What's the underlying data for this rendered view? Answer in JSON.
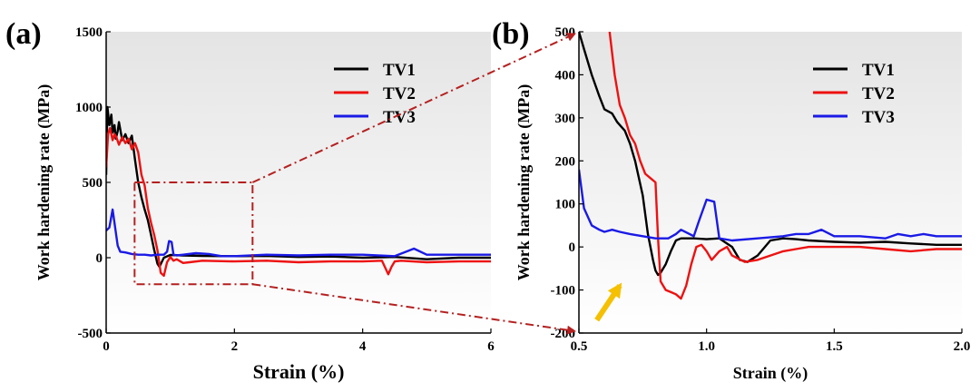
{
  "colors": {
    "TV1": "#000000",
    "TV2": "#ee1111",
    "TV3": "#1a1ae6",
    "inset_box": "#b52020",
    "arrow": "#f5c000"
  },
  "chart_data": [
    {
      "type": "line",
      "panel_label": "(a)",
      "xlabel": "Strain (%)",
      "ylabel": "Work hardening rate (MPa)",
      "xlim": [
        0,
        6
      ],
      "ylim": [
        -500,
        1500
      ],
      "xticks": [
        0,
        2,
        4,
        6
      ],
      "yticks": [
        -500,
        0,
        500,
        1000,
        1500
      ],
      "legend_position": "top-right",
      "series": [
        {
          "name": "TV1",
          "x": [
            0.0,
            0.02,
            0.05,
            0.08,
            0.1,
            0.13,
            0.15,
            0.18,
            0.2,
            0.25,
            0.3,
            0.35,
            0.4,
            0.45,
            0.5,
            0.55,
            0.6,
            0.65,
            0.7,
            0.75,
            0.8,
            0.83,
            0.9,
            1.0,
            1.2,
            1.5,
            2.0,
            2.5,
            3.0,
            3.5,
            4.0,
            4.5,
            5.0,
            5.5,
            6.0
          ],
          "y": [
            550,
            1000,
            880,
            950,
            830,
            880,
            790,
            840,
            900,
            780,
            820,
            760,
            810,
            650,
            500,
            400,
            320,
            250,
            150,
            50,
            -40,
            -60,
            0,
            18,
            15,
            12,
            10,
            12,
            5,
            8,
            0,
            5,
            -10,
            0,
            0
          ]
        },
        {
          "name": "TV2",
          "x": [
            0.0,
            0.03,
            0.06,
            0.1,
            0.13,
            0.16,
            0.2,
            0.25,
            0.3,
            0.35,
            0.4,
            0.45,
            0.5,
            0.55,
            0.6,
            0.65,
            0.7,
            0.75,
            0.8,
            0.85,
            0.9,
            0.95,
            1.0,
            1.05,
            1.1,
            1.2,
            1.3,
            1.5,
            2.0,
            2.5,
            3.0,
            3.5,
            4.0,
            4.3,
            4.4,
            4.45,
            4.5,
            4.6,
            5.0,
            5.5,
            6.0
          ],
          "y": [
            600,
            820,
            860,
            780,
            820,
            800,
            750,
            800,
            760,
            790,
            720,
            760,
            700,
            550,
            480,
            330,
            230,
            150,
            50,
            -100,
            -120,
            -30,
            5,
            -20,
            -10,
            -35,
            -30,
            -20,
            -25,
            -20,
            -30,
            -25,
            -25,
            -20,
            -110,
            -60,
            -25,
            -20,
            -30,
            -25,
            -25
          ]
        },
        {
          "name": "TV3",
          "x": [
            0.0,
            0.05,
            0.1,
            0.13,
            0.18,
            0.22,
            0.3,
            0.4,
            0.5,
            0.6,
            0.7,
            0.8,
            0.9,
            0.95,
            0.98,
            1.02,
            1.05,
            1.1,
            1.2,
            1.4,
            1.6,
            1.8,
            2.0,
            2.5,
            3.0,
            3.5,
            4.0,
            4.5,
            4.8,
            5.0,
            5.5,
            6.0
          ],
          "y": [
            180,
            200,
            320,
            230,
            80,
            40,
            35,
            25,
            20,
            20,
            15,
            20,
            20,
            40,
            110,
            105,
            20,
            15,
            20,
            30,
            25,
            10,
            10,
            20,
            15,
            20,
            20,
            10,
            60,
            20,
            20,
            20
          ]
        }
      ],
      "inset_region": {
        "x": [
          0.5,
          2.0
        ],
        "y": [
          -200,
          500
        ]
      }
    },
    {
      "type": "line",
      "panel_label": "(b)",
      "xlabel": "Strain (%)",
      "ylabel": "Work hardening rate (MPa)",
      "xlim": [
        0.5,
        2.0
      ],
      "ylim": [
        -200,
        500
      ],
      "xticks": [
        0.5,
        1.0,
        1.5,
        2.0
      ],
      "xtick_labels": [
        "0.5",
        "1.0",
        "1.5",
        "2.0"
      ],
      "yticks": [
        -200,
        -100,
        0,
        100,
        200,
        300,
        400,
        500
      ],
      "legend_position": "top-right",
      "series": [
        {
          "name": "TV1",
          "x": [
            0.5,
            0.52,
            0.55,
            0.58,
            0.6,
            0.63,
            0.65,
            0.68,
            0.7,
            0.72,
            0.75,
            0.77,
            0.79,
            0.8,
            0.81,
            0.82,
            0.84,
            0.86,
            0.88,
            0.9,
            0.95,
            1.0,
            1.05,
            1.1,
            1.13,
            1.16,
            1.2,
            1.25,
            1.3,
            1.35,
            1.4,
            1.5,
            1.6,
            1.7,
            1.8,
            1.9,
            2.0
          ],
          "y": [
            500,
            460,
            400,
            350,
            320,
            310,
            290,
            270,
            240,
            200,
            120,
            30,
            -30,
            -55,
            -65,
            -60,
            -40,
            -10,
            15,
            20,
            20,
            18,
            20,
            0,
            -30,
            -35,
            -20,
            15,
            20,
            18,
            15,
            12,
            10,
            12,
            8,
            5,
            5
          ]
        },
        {
          "name": "TV2",
          "x": [
            0.62,
            0.64,
            0.66,
            0.68,
            0.7,
            0.72,
            0.74,
            0.76,
            0.78,
            0.8,
            0.81,
            0.82,
            0.84,
            0.86,
            0.88,
            0.9,
            0.92,
            0.94,
            0.96,
            0.98,
            1.0,
            1.02,
            1.05,
            1.08,
            1.1,
            1.15,
            1.2,
            1.25,
            1.3,
            1.35,
            1.4,
            1.5,
            1.6,
            1.7,
            1.8,
            1.9,
            2.0
          ],
          "y": [
            500,
            400,
            330,
            300,
            260,
            240,
            200,
            170,
            160,
            150,
            20,
            -80,
            -100,
            -105,
            -110,
            -120,
            -90,
            -40,
            0,
            5,
            -10,
            -30,
            -10,
            0,
            -20,
            -35,
            -30,
            -20,
            -10,
            -5,
            0,
            0,
            0,
            -5,
            -10,
            -5,
            -5
          ]
        },
        {
          "name": "TV3",
          "x": [
            0.5,
            0.52,
            0.55,
            0.58,
            0.6,
            0.63,
            0.66,
            0.7,
            0.75,
            0.8,
            0.85,
            0.88,
            0.9,
            0.95,
            0.97,
            1.0,
            1.03,
            1.05,
            1.1,
            1.2,
            1.3,
            1.35,
            1.4,
            1.45,
            1.5,
            1.6,
            1.7,
            1.75,
            1.8,
            1.85,
            1.9,
            2.0
          ],
          "y": [
            180,
            90,
            50,
            40,
            35,
            40,
            35,
            30,
            25,
            20,
            20,
            30,
            40,
            25,
            60,
            110,
            105,
            20,
            15,
            20,
            25,
            30,
            30,
            40,
            25,
            25,
            20,
            30,
            25,
            30,
            25,
            25
          ]
        }
      ],
      "annotation_arrow": {
        "from": [
          0.57,
          -170
        ],
        "to": [
          0.66,
          -90
        ]
      }
    }
  ]
}
